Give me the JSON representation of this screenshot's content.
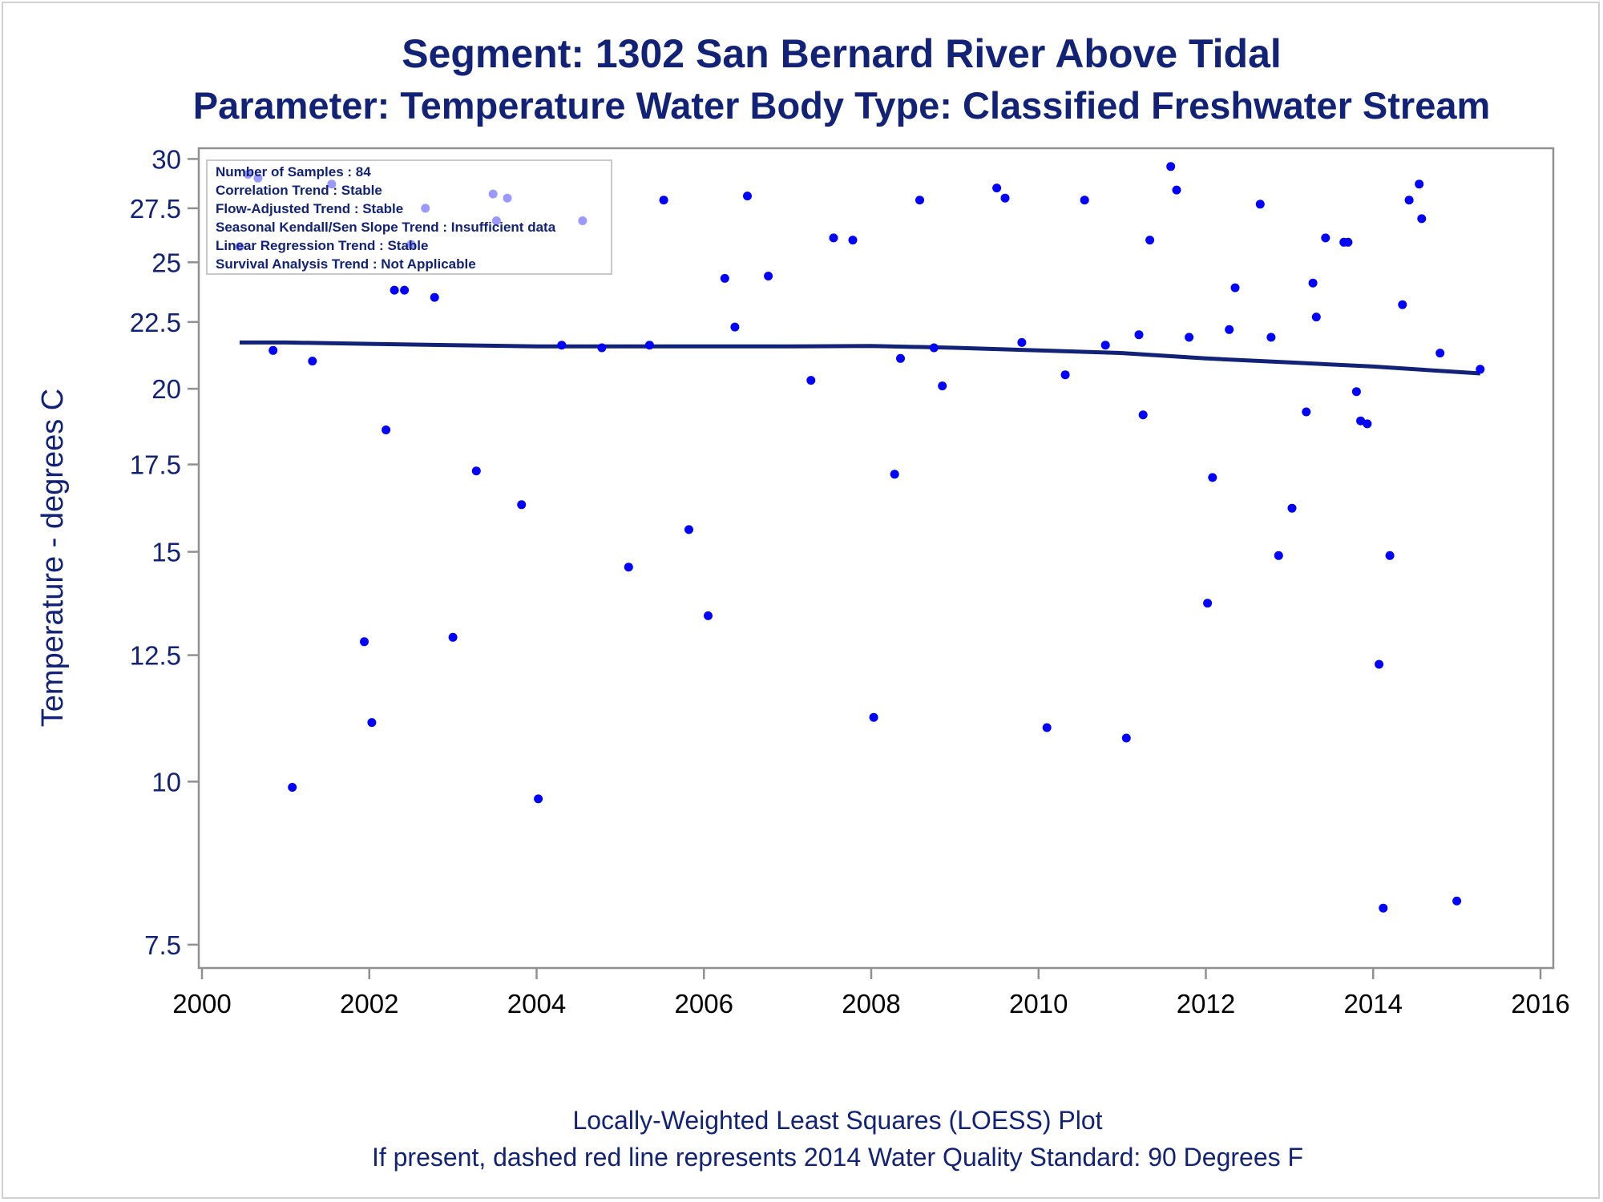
{
  "chart_data": {
    "type": "scatter",
    "title": "Segment: 1302  San Bernard River Above Tidal",
    "subtitle": "Parameter: Temperature   Water Body Type: Classified Freshwater Stream",
    "xlabel": "",
    "ylabel": "Temperature - degrees C",
    "footnotes": [
      "Locally-Weighted Least Squares (LOESS) Plot",
      "If present, dashed red line represents 2014 Water Quality Standard: 90   Degrees F"
    ],
    "x_ticks": [
      "2000",
      "2002",
      "2004",
      "2006",
      "2008",
      "2010",
      "2012",
      "2014",
      "2016"
    ],
    "y_ticks": [
      "7.5",
      "10",
      "12.5",
      "15",
      "17.5",
      "20",
      "22.5",
      "25",
      "27.5",
      "30"
    ],
    "xlim": [
      2000,
      2016
    ],
    "ylim": [
      7.3,
      30.1
    ],
    "y_scale": "log",
    "grid": false,
    "inset_lines": [
      "Number of Samples : 84",
      "Correlation Trend : Stable",
      "Flow-Adjusted Trend : Stable",
      "Seasonal Kendall/Sen Slope Trend : Insufficient data",
      "Linear Regression Trend : Stable",
      "Survival Analysis Trend : Not Applicable"
    ],
    "series": [
      {
        "type": "scatter",
        "color": "#0000ff",
        "points": [
          [
            2000.45,
            25.7
          ],
          [
            2000.55,
            29.2
          ],
          [
            2000.67,
            29.0
          ],
          [
            2000.85,
            21.4
          ],
          [
            2001.08,
            9.9
          ],
          [
            2001.32,
            21.0
          ],
          [
            2001.55,
            28.7
          ],
          [
            2001.94,
            12.8
          ],
          [
            2002.03,
            11.1
          ],
          [
            2002.2,
            18.6
          ],
          [
            2002.3,
            23.8
          ],
          [
            2002.42,
            23.8
          ],
          [
            2002.5,
            25.8
          ],
          [
            2002.67,
            27.5
          ],
          [
            2002.78,
            23.5
          ],
          [
            2003.0,
            12.9
          ],
          [
            2003.28,
            17.3
          ],
          [
            2003.48,
            28.2
          ],
          [
            2003.52,
            26.9
          ],
          [
            2003.65,
            28.0
          ],
          [
            2003.82,
            16.3
          ],
          [
            2004.02,
            9.7
          ],
          [
            2004.3,
            21.6
          ],
          [
            2004.55,
            26.9
          ],
          [
            2004.78,
            21.5
          ],
          [
            2005.1,
            14.6
          ],
          [
            2005.35,
            21.6
          ],
          [
            2005.52,
            27.9
          ],
          [
            2005.82,
            15.6
          ],
          [
            2006.05,
            13.4
          ],
          [
            2006.25,
            24.3
          ],
          [
            2006.37,
            22.3
          ],
          [
            2006.52,
            28.1
          ],
          [
            2006.77,
            24.4
          ],
          [
            2007.28,
            20.3
          ],
          [
            2007.55,
            26.1
          ],
          [
            2007.78,
            26.0
          ],
          [
            2008.03,
            11.2
          ],
          [
            2008.28,
            17.2
          ],
          [
            2008.35,
            21.1
          ],
          [
            2008.58,
            27.9
          ],
          [
            2008.75,
            21.5
          ],
          [
            2008.85,
            20.1
          ],
          [
            2009.5,
            28.5
          ],
          [
            2009.6,
            28.0
          ],
          [
            2009.8,
            21.7
          ],
          [
            2010.1,
            11.0
          ],
          [
            2010.32,
            20.5
          ],
          [
            2010.55,
            27.9
          ],
          [
            2010.8,
            21.6
          ],
          [
            2011.05,
            10.8
          ],
          [
            2011.2,
            22.0
          ],
          [
            2011.25,
            19.1
          ],
          [
            2011.33,
            26.0
          ],
          [
            2011.58,
            29.6
          ],
          [
            2011.65,
            28.4
          ],
          [
            2011.8,
            21.9
          ],
          [
            2012.02,
            13.7
          ],
          [
            2012.08,
            17.1
          ],
          [
            2012.28,
            22.2
          ],
          [
            2012.35,
            23.9
          ],
          [
            2012.65,
            27.7
          ],
          [
            2012.78,
            21.9
          ],
          [
            2012.87,
            14.9
          ],
          [
            2013.03,
            16.2
          ],
          [
            2013.2,
            19.2
          ],
          [
            2013.28,
            24.1
          ],
          [
            2013.32,
            22.7
          ],
          [
            2013.43,
            26.1
          ],
          [
            2013.65,
            25.9
          ],
          [
            2013.7,
            25.9
          ],
          [
            2013.8,
            19.9
          ],
          [
            2013.85,
            18.9
          ],
          [
            2013.93,
            18.8
          ],
          [
            2014.07,
            12.3
          ],
          [
            2014.12,
            8.0
          ],
          [
            2014.2,
            14.9
          ],
          [
            2014.35,
            23.2
          ],
          [
            2014.43,
            27.9
          ],
          [
            2014.55,
            28.7
          ],
          [
            2014.58,
            27.0
          ],
          [
            2014.8,
            21.3
          ],
          [
            2015.0,
            8.1
          ],
          [
            2015.28,
            20.7
          ]
        ]
      },
      {
        "type": "line",
        "color": "#112277",
        "points": [
          [
            2000.45,
            21.7
          ],
          [
            2001.0,
            21.7
          ],
          [
            2002.0,
            21.65
          ],
          [
            2003.0,
            21.6
          ],
          [
            2004.0,
            21.55
          ],
          [
            2005.0,
            21.55
          ],
          [
            2006.0,
            21.55
          ],
          [
            2007.0,
            21.55
          ],
          [
            2008.0,
            21.57
          ],
          [
            2009.0,
            21.5
          ],
          [
            2010.0,
            21.4
          ],
          [
            2011.0,
            21.3
          ],
          [
            2012.0,
            21.1
          ],
          [
            2013.0,
            20.95
          ],
          [
            2014.0,
            20.8
          ],
          [
            2015.28,
            20.55
          ]
        ]
      }
    ]
  }
}
